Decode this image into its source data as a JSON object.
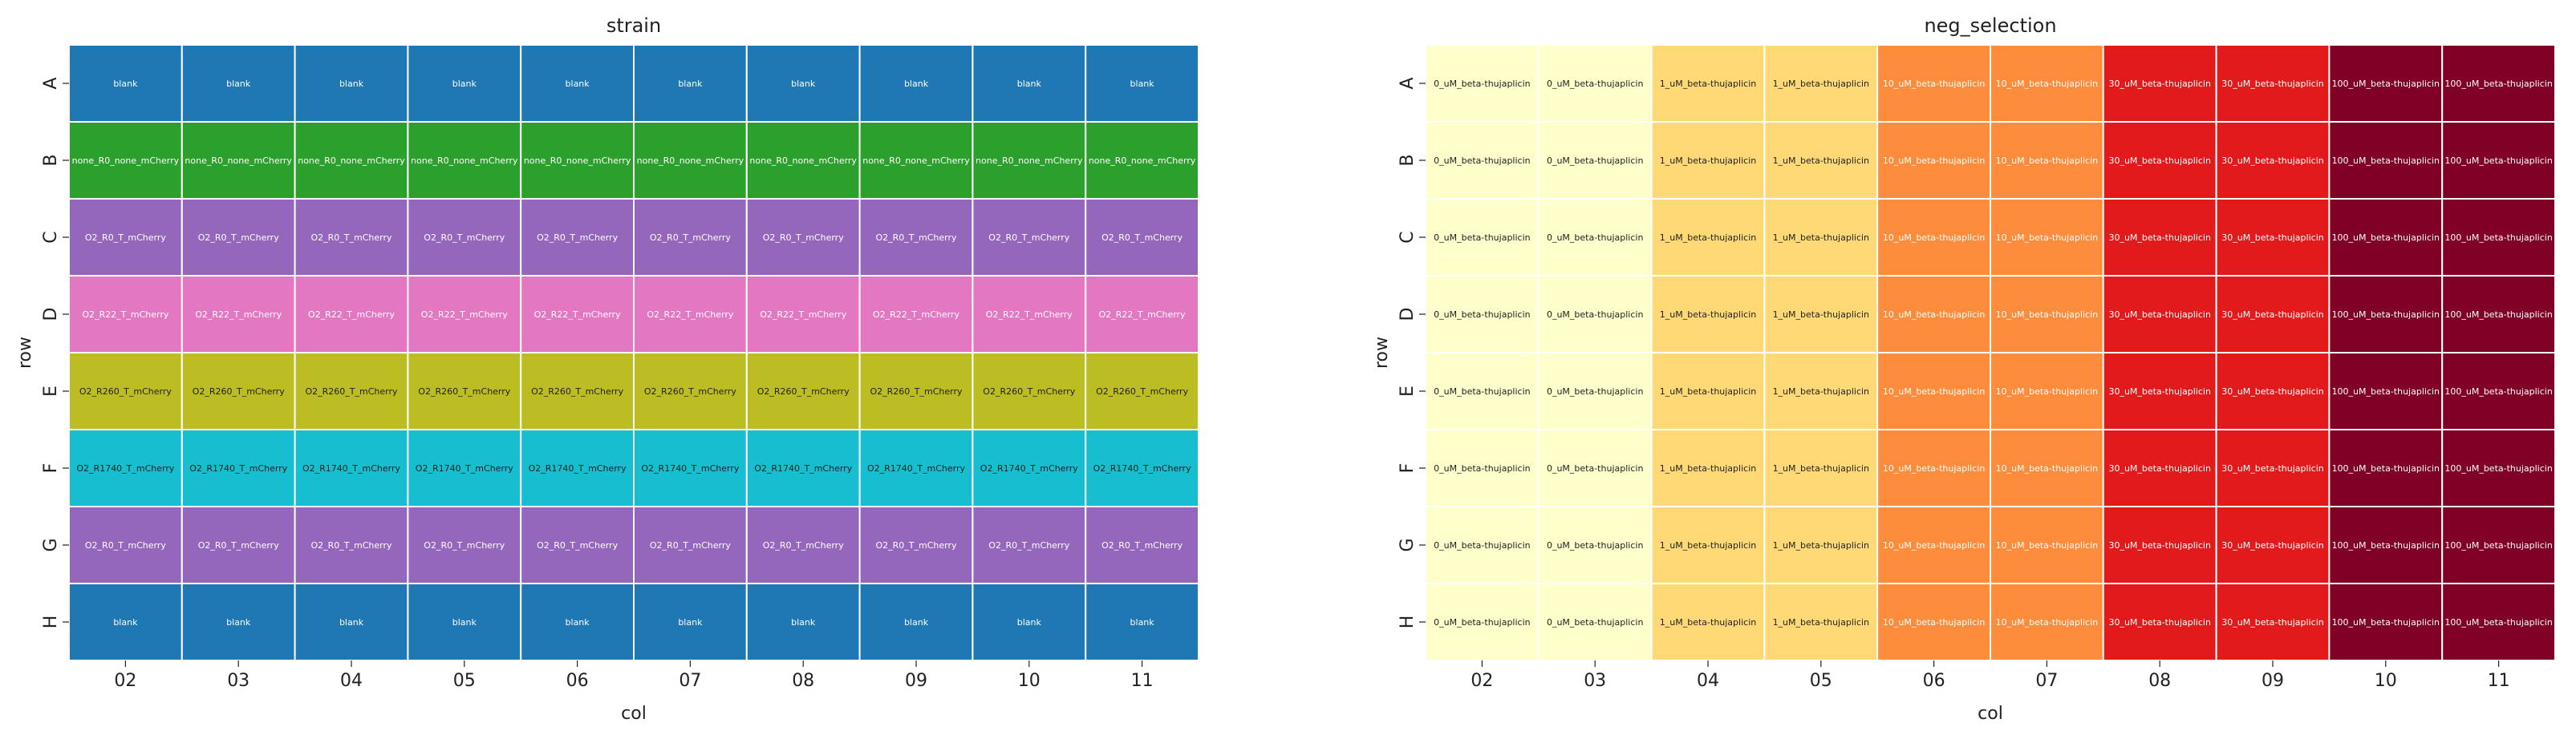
{
  "chart_data": [
    {
      "type": "heatmap",
      "title": "strain",
      "xlabel": "col",
      "ylabel": "row",
      "columns": [
        "02",
        "03",
        "04",
        "05",
        "06",
        "07",
        "08",
        "09",
        "10",
        "11"
      ],
      "rows": [
        "A",
        "B",
        "C",
        "D",
        "E",
        "F",
        "G",
        "H"
      ],
      "row_values": [
        "blank",
        "none_R0_none_mCherry",
        "O2_R0_T_mCherry",
        "O2_R22_T_mCherry",
        "O2_R260_T_mCherry",
        "O2_R1740_T_mCherry",
        "O2_R0_T_mCherry",
        "blank"
      ],
      "colors": {
        "blank": "#1f77b4",
        "none_R0_none_mCherry": "#2ca02c",
        "O2_R0_T_mCherry": "#9467bd",
        "O2_R22_T_mCherry": "#e377c2",
        "O2_R260_T_mCherry": "#bcbd22",
        "O2_R1740_T_mCherry": "#17becf"
      },
      "text_colors": {
        "blank": "#ffffff",
        "none_R0_none_mCherry": "#ffffff",
        "O2_R0_T_mCherry": "#ffffff",
        "O2_R22_T_mCherry": "#ffffff",
        "O2_R260_T_mCherry": "#222222",
        "O2_R1740_T_mCherry": "#222222"
      }
    },
    {
      "type": "heatmap",
      "title": "neg_selection",
      "xlabel": "col",
      "ylabel": "row",
      "columns": [
        "02",
        "03",
        "04",
        "05",
        "06",
        "07",
        "08",
        "09",
        "10",
        "11"
      ],
      "rows": [
        "A",
        "B",
        "C",
        "D",
        "E",
        "F",
        "G",
        "H"
      ],
      "col_values": [
        "0_uM_beta-thujaplicin",
        "0_uM_beta-thujaplicin",
        "1_uM_beta-thujaplicin",
        "1_uM_beta-thujaplicin",
        "10_uM_beta-thujaplicin",
        "10_uM_beta-thujaplicin",
        "30_uM_beta-thujaplicin",
        "30_uM_beta-thujaplicin",
        "100_uM_beta-thujaplicin",
        "100_uM_beta-thujaplicin"
      ],
      "colors": {
        "0_uM_beta-thujaplicin": "#ffffcc",
        "1_uM_beta-thujaplicin": "#fed976",
        "10_uM_beta-thujaplicin": "#fd8d3c",
        "30_uM_beta-thujaplicin": "#e31a1c",
        "100_uM_beta-thujaplicin": "#800026"
      },
      "text_colors": {
        "0_uM_beta-thujaplicin": "#222222",
        "1_uM_beta-thujaplicin": "#222222",
        "10_uM_beta-thujaplicin": "#ffffff",
        "30_uM_beta-thujaplicin": "#ffffff",
        "100_uM_beta-thujaplicin": "#ffffff"
      }
    }
  ]
}
